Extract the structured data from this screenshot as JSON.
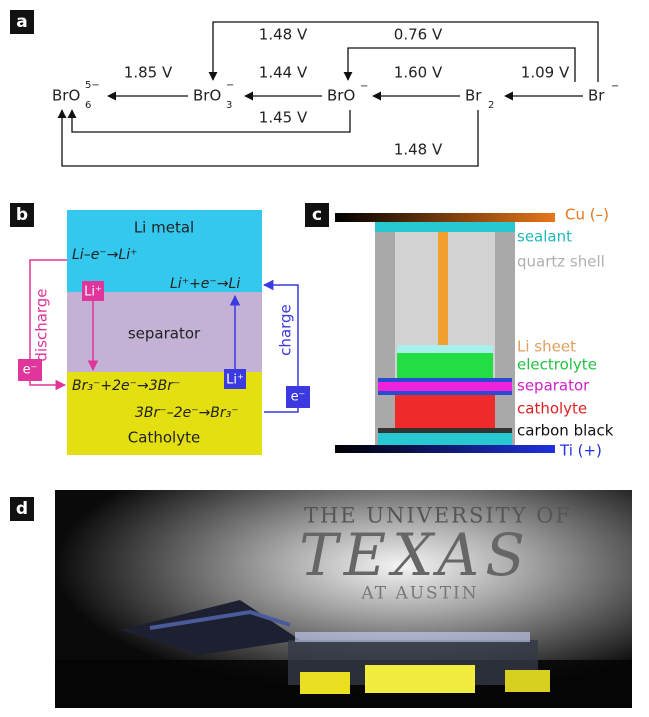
{
  "panel_a": {
    "label": "a",
    "species": [
      {
        "base": "BrO",
        "sup": "5−",
        "sub": "6"
      },
      {
        "base": "BrO",
        "sup": "−",
        "sub": "3"
      },
      {
        "base": "BrO",
        "sup": "−"
      },
      {
        "base": "Br",
        "sub": "2"
      },
      {
        "base": "Br",
        "sup": "−"
      }
    ],
    "potentials": [
      "1.85 V",
      "1.44 V",
      "1.60 V",
      "1.09 V",
      "1.45 V",
      "1.48 V",
      "0.76 V",
      "1.48 V"
    ]
  },
  "panel_b": {
    "label": "b",
    "layers": [
      "Li metal",
      "separator",
      "Catholyte"
    ],
    "reactions": [
      "Li–e⁻→Li⁺",
      "Li⁺+e⁻→Li",
      "Br₃⁻+2e⁻→3Br⁻",
      "3Br⁻–2e⁻→Br₃⁻"
    ],
    "discharge": {
      "label": "discharge",
      "ion": "Li⁺",
      "electron": "e⁻"
    },
    "charge": {
      "label": "charge",
      "ion": "Li⁺",
      "electron": "e⁻"
    }
  },
  "panel_c": {
    "label": "c",
    "components": [
      "Cu (–)",
      "sealant",
      "quartz shell",
      "Li sheet",
      "electrolyte",
      "separator",
      "catholyte",
      "carbon black",
      "Ti (+)"
    ]
  },
  "panel_d": {
    "label": "d",
    "photo_text": [
      "THE UNIVERSITY OF",
      "TEXAS",
      "AT AUSTIN"
    ]
  }
}
